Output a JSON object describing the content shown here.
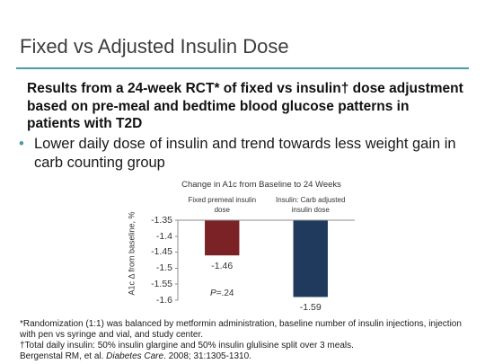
{
  "slide": {
    "title": "Fixed vs Adjusted Insulin Dose",
    "intro_lines": [
      "Results from a 24-week RCT* of fixed vs insulin† dose adjustment",
      "based on pre-meal and bedtime blood glucose patterns in",
      "patients with T2D"
    ],
    "bullet": {
      "symbol": "•",
      "lines": [
        "Lower daily dose of insulin and trend towards less weight gain in",
        "carb counting group"
      ]
    },
    "footnotes": {
      "randomization_lines": [
        "*Randomization (1:1) was balanced by metformin administration, baseline number of insulin injections, injection",
        "with pen vs syringe and vial, and study center."
      ],
      "total_daily_insulin": "†Total daily insulin: 50% insulin glargine and 50% insulin glulisine split over 3 meals.",
      "citation": {
        "authors": "Bergenstal RM, et al.",
        "journal": "Diabetes Care",
        "details": ". 2008; 31:1305-1310."
      }
    },
    "colors": {
      "accent": "#4a9aa8",
      "title_text": "#3d3d3d"
    }
  },
  "chart_data": {
    "type": "bar",
    "title": "Change in A1c from Baseline to 24 Weeks",
    "categories": [
      "Fixed premeal insulin dose",
      "Insulin: Carb adjusted insulin dose"
    ],
    "values": [
      -1.46,
      -1.59
    ],
    "data_labels": [
      "-1.46",
      "-1.59"
    ],
    "colors": [
      "#7b2227",
      "#1f3a5c"
    ],
    "ylabel": "A1c Δ from baseline, %",
    "ylim": [
      -1.6,
      -1.35
    ],
    "yticks": [
      -1.35,
      -1.4,
      -1.45,
      -1.5,
      -1.55,
      -1.6
    ],
    "ytick_labels": [
      "-1.35",
      "-1.4",
      "-1.45",
      "-1.5",
      "-1.55",
      "-1.6"
    ],
    "bar_baseline": -1.35,
    "grid": false,
    "annotations": [
      {
        "text": "P=.24",
        "category": 0
      }
    ]
  }
}
